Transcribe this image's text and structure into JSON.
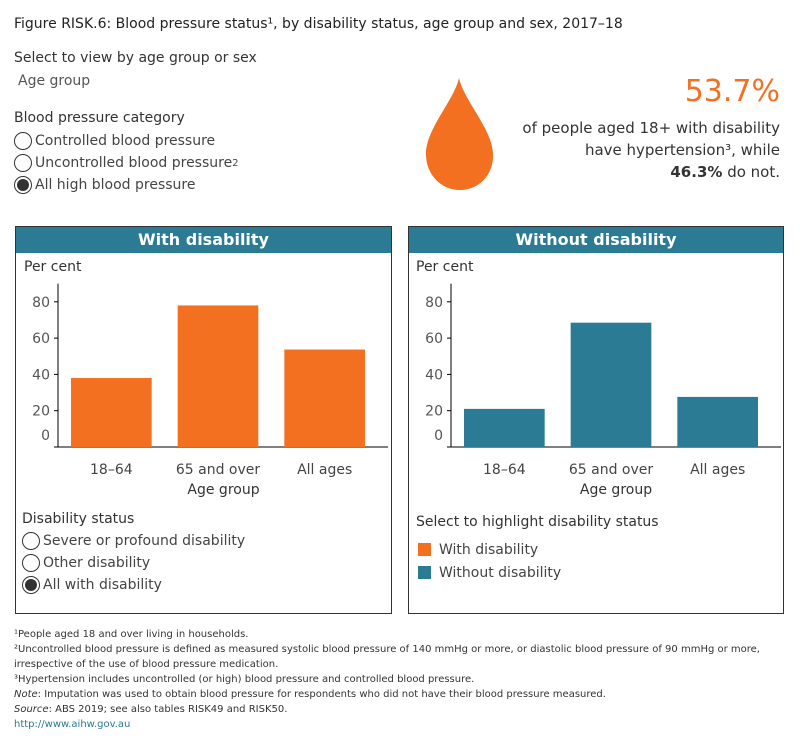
{
  "title": "Figure RISK.6: Blood pressure status¹, by disability status, age group and sex, 2017–18",
  "controls": {
    "view_label": "Select to view by age group or sex",
    "view_value": "Age group",
    "bp_label": "Blood pressure category",
    "bp_options": [
      {
        "label": "Controlled blood pressure",
        "sup": "",
        "selected": false
      },
      {
        "label": "Uncontrolled blood pressure",
        "sup": "2",
        "selected": false
      },
      {
        "label": "All high blood pressure",
        "sup": "",
        "selected": true
      }
    ]
  },
  "callout": {
    "icon": "blood-drop-icon",
    "value": "53.7%",
    "line1": "of people aged 18+ with disability",
    "line2": "have hypertension³, while",
    "other_value": "46.3%",
    "line3": " do not."
  },
  "colors": {
    "with": "#f37021",
    "without": "#2a7b93"
  },
  "chart_data": [
    {
      "type": "bar",
      "title": "With disability",
      "ylabel": "Per cent",
      "xlabel": "Age group",
      "categories": [
        "18–64",
        "65 and over",
        "All ages"
      ],
      "values": [
        38.0,
        78.0,
        53.7
      ],
      "yticks": [
        0,
        20,
        40,
        60,
        80
      ],
      "ylim": [
        0,
        90
      ],
      "color": "#f37021"
    },
    {
      "type": "bar",
      "title": "Without disability",
      "ylabel": "Per cent",
      "xlabel": "Age group",
      "categories": [
        "18–64",
        "65 and over",
        "All ages"
      ],
      "values": [
        21.0,
        68.5,
        27.6
      ],
      "yticks": [
        0,
        20,
        40,
        60,
        80
      ],
      "ylim": [
        0,
        90
      ],
      "color": "#2a7b93"
    }
  ],
  "disability_filter": {
    "label": "Disability status",
    "options": [
      {
        "label": "Severe or profound disability",
        "selected": false
      },
      {
        "label": "Other disability",
        "selected": false
      },
      {
        "label": "All with disability",
        "selected": true
      }
    ]
  },
  "highlight_legend": {
    "label": "Select to highlight disability status",
    "items": [
      {
        "label": "With disability",
        "color": "#f37021"
      },
      {
        "label": "Without disability",
        "color": "#2a7b93"
      }
    ]
  },
  "footnotes": {
    "f1": "¹People aged 18 and over living in households.",
    "f2": "²Uncontrolled blood pressure is defined as measured systolic blood pressure of 140 mmHg or more, or diastolic blood pressure of 90 mmHg or more, irrespective of the use of blood pressure medication.",
    "f3": "³Hypertension includes uncontrolled (or high) blood pressure and controlled blood pressure.",
    "note_label": "Note",
    "note": ": Imputation was used to obtain blood pressure for respondents who did not have their blood pressure measured.",
    "source_label": "Source",
    "source": ": ABS 2019; see also tables RISK49 and RISK50.",
    "link": "http://www.aihw.gov.au"
  }
}
